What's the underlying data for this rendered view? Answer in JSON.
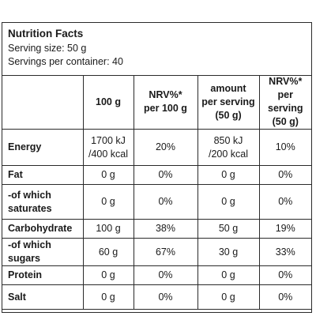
{
  "header": {
    "title": "Nutrition Facts",
    "serving_size": "Serving size: 50 g",
    "servings_per_container": "Servings per container: 40"
  },
  "columns": [
    [
      "100 g"
    ],
    [
      "NRV%*",
      "per 100 g"
    ],
    [
      "amount",
      "per serving",
      "(50 g)"
    ],
    [
      "NRV%*",
      "per serving",
      "(50 g)"
    ]
  ],
  "rows": [
    {
      "label": [
        "Energy"
      ],
      "values": [
        [
          "1700 kJ",
          "/400 kcal"
        ],
        [
          "20%"
        ],
        [
          "850 kJ",
          "/200 kcal"
        ],
        [
          "10%"
        ]
      ]
    },
    {
      "label": [
        "Fat"
      ],
      "values": [
        [
          "0 g"
        ],
        [
          "0%"
        ],
        [
          "0 g"
        ],
        [
          "0%"
        ]
      ]
    },
    {
      "label": [
        "-of which",
        "saturates"
      ],
      "values": [
        [
          "0 g"
        ],
        [
          "0%"
        ],
        [
          "0 g"
        ],
        [
          "0%"
        ]
      ]
    },
    {
      "label": [
        "Carbohydrate"
      ],
      "values": [
        [
          "100 g"
        ],
        [
          "38%"
        ],
        [
          "50 g"
        ],
        [
          "19%"
        ]
      ]
    },
    {
      "label": [
        "-of which sugars"
      ],
      "values": [
        [
          "60 g"
        ],
        [
          "67%"
        ],
        [
          "30 g"
        ],
        [
          "33%"
        ]
      ]
    },
    {
      "label": [
        "Protein"
      ],
      "values": [
        [
          "0 g"
        ],
        [
          "0%"
        ],
        [
          "0 g"
        ],
        [
          "0%"
        ]
      ]
    },
    {
      "label": [
        "Salt"
      ],
      "values": [
        [
          "0 g"
        ],
        [
          "0%"
        ],
        [
          "0 g"
        ],
        [
          "0%"
        ]
      ]
    }
  ]
}
